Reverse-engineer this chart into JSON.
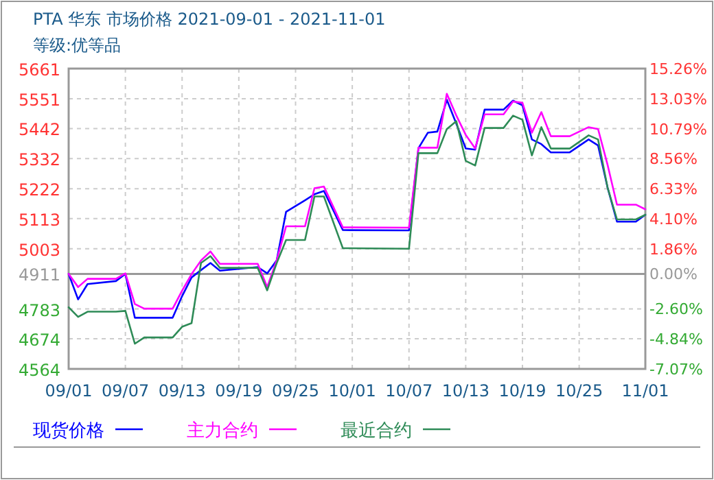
{
  "chart_data": {
    "type": "line",
    "title": "PTA 华东 市场价格 2021-09-01 - 2021-11-01",
    "subtitle": "等级:优等品",
    "x": [
      "2021-09-01",
      "2021-09-02",
      "2021-09-03",
      "2021-09-06",
      "2021-09-07",
      "2021-09-08",
      "2021-09-09",
      "2021-09-12",
      "2021-09-13",
      "2021-09-14",
      "2021-09-15",
      "2021-09-16",
      "2021-09-17",
      "2021-09-21",
      "2021-09-22",
      "2021-09-23",
      "2021-09-24",
      "2021-09-26",
      "2021-09-27",
      "2021-09-28",
      "2021-09-30",
      "2021-10-07",
      "2021-10-08",
      "2021-10-09",
      "2021-10-10",
      "2021-10-11",
      "2021-10-12",
      "2021-10-13",
      "2021-10-14",
      "2021-10-15",
      "2021-10-17",
      "2021-10-18",
      "2021-10-19",
      "2021-10-20",
      "2021-10-21",
      "2021-10-22",
      "2021-10-24",
      "2021-10-26",
      "2021-10-27",
      "2021-10-28",
      "2021-10-29",
      "2021-10-31",
      "2021-11-01"
    ],
    "series": [
      {
        "name": "现货价格",
        "color": "#0000ff",
        "values": [
          4911,
          4818,
          4874,
          4885,
          4911,
          4751,
          4751,
          4751,
          4830,
          4898,
          4925,
          4951,
          4923,
          4936,
          4913,
          4960,
          5138,
          5180,
          5202,
          5214,
          5071,
          5070,
          5370,
          5427,
          5431,
          5547,
          5460,
          5369,
          5365,
          5511,
          5511,
          5544,
          5527,
          5402,
          5385,
          5355,
          5355,
          5402,
          5380,
          5227,
          5102,
          5102,
          5127
        ]
      },
      {
        "name": "主力合约",
        "color": "#ff00ff",
        "values": [
          4911,
          4863,
          4893,
          4893,
          4913,
          4801,
          4784,
          4784,
          4850,
          4910,
          4960,
          4993,
          4948,
          4948,
          4863,
          4960,
          5085,
          5085,
          5224,
          5230,
          5081,
          5080,
          5372,
          5372,
          5372,
          5569,
          5490,
          5419,
          5369,
          5494,
          5494,
          5541,
          5536,
          5427,
          5502,
          5414,
          5414,
          5447,
          5440,
          5310,
          5164,
          5164,
          5147
        ]
      },
      {
        "name": "最近合约",
        "color": "#2e8b57",
        "values": [
          4789,
          4754,
          4773,
          4773,
          4776,
          4656,
          4679,
          4679,
          4718,
          4731,
          4951,
          4976,
          4933,
          4933,
          4851,
          4950,
          5035,
          5035,
          5194,
          5194,
          5005,
          5003,
          5352,
          5352,
          5352,
          5440,
          5469,
          5324,
          5307,
          5444,
          5444,
          5489,
          5474,
          5344,
          5447,
          5369,
          5369,
          5417,
          5402,
          5227,
          5110,
          5110,
          5127
        ]
      }
    ],
    "xlim": [
      "2021-09-01",
      "2021-11-01"
    ],
    "xticks": [
      {
        "value": "2021-09-01",
        "label": "09/01"
      },
      {
        "value": "2021-09-07",
        "label": "09/07"
      },
      {
        "value": "2021-09-13",
        "label": "09/13"
      },
      {
        "value": "2021-09-19",
        "label": "09/19"
      },
      {
        "value": "2021-09-25",
        "label": "09/25"
      },
      {
        "value": "2021-10-01",
        "label": "10/01"
      },
      {
        "value": "2021-10-07",
        "label": "10/07"
      },
      {
        "value": "2021-10-13",
        "label": "10/13"
      },
      {
        "value": "2021-10-19",
        "label": "10/19"
      },
      {
        "value": "2021-10-25",
        "label": "10/25"
      },
      {
        "value": "2021-11-01",
        "label": "11/01"
      }
    ],
    "ylim": [
      4564,
      5661
    ],
    "yticks": [
      4564,
      4674,
      4783,
      4911,
      5003,
      5113,
      5222,
      5332,
      5442,
      5551,
      5661
    ],
    "y2lim": [
      -7.07,
      15.26
    ],
    "y2ticks": [
      {
        "value": -7.07,
        "label": "-7.07%"
      },
      {
        "value": -4.84,
        "label": "-4.84%"
      },
      {
        "value": -2.6,
        "label": "-2.60%"
      },
      {
        "value": 0,
        "label": "0.00%"
      },
      {
        "value": 1.86,
        "label": "1.86%"
      },
      {
        "value": 4.1,
        "label": "4.10%"
      },
      {
        "value": 6.33,
        "label": "6.33%"
      },
      {
        "value": 8.56,
        "label": "8.56%"
      },
      {
        "value": 10.79,
        "label": "10.79%"
      },
      {
        "value": 13.03,
        "label": "13.03%"
      },
      {
        "value": 15.26,
        "label": "15.26%"
      }
    ],
    "ref_lines": [
      {
        "axis": "y",
        "value": 4911,
        "color": "#999999"
      }
    ],
    "grid": true,
    "legend": "bottom",
    "line_style": "solid"
  }
}
